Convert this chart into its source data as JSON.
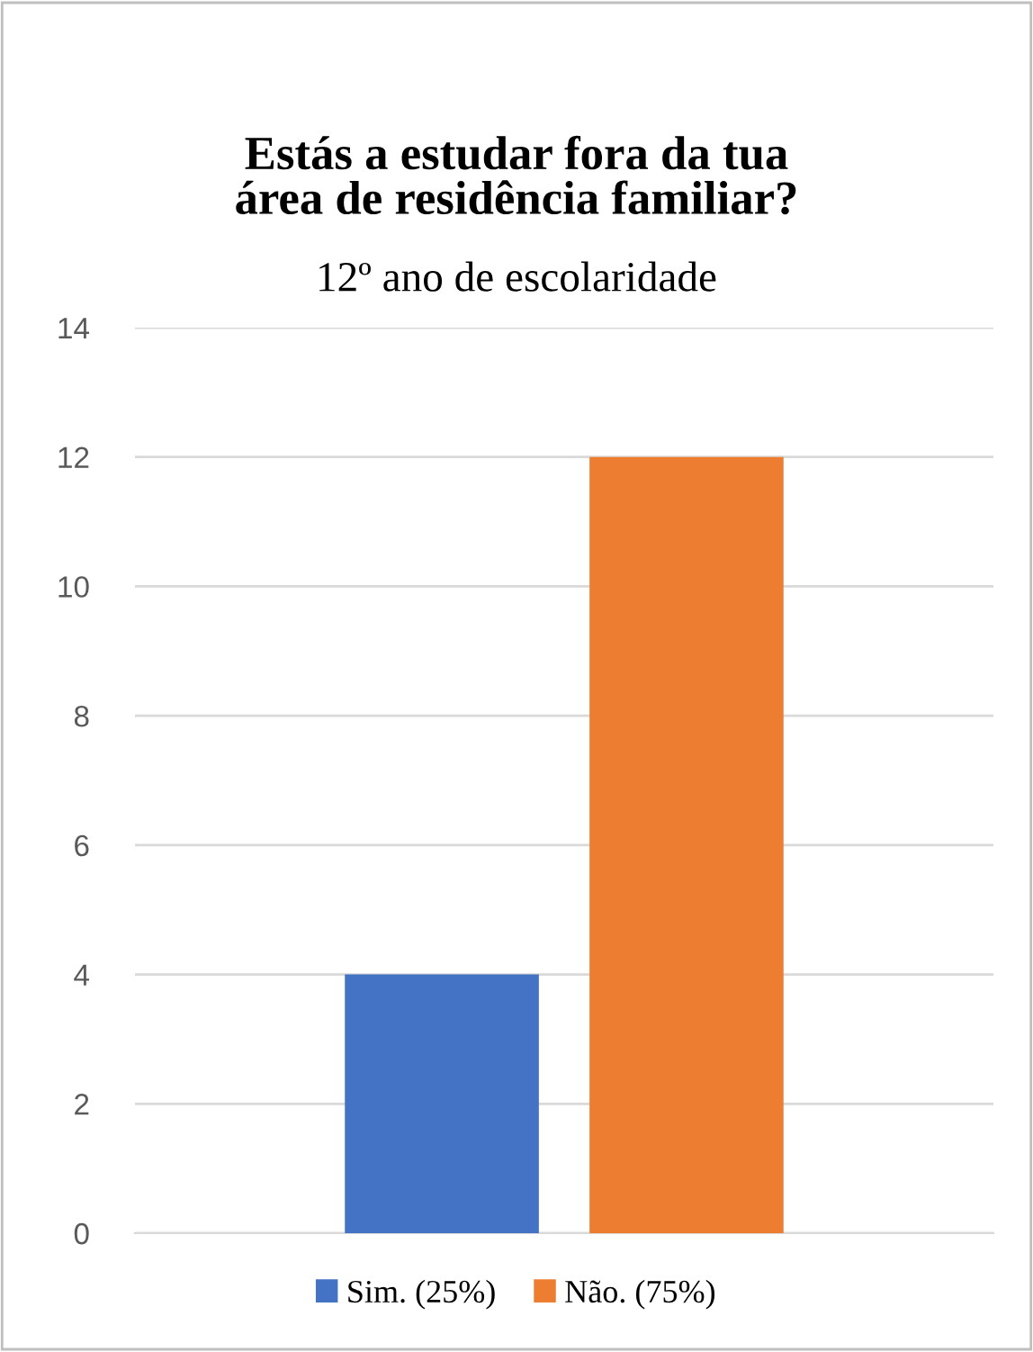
{
  "chart_data": {
    "type": "bar",
    "title": "Estás a estudar fora da tua\nárea de residência familiar?",
    "subtitle": "12º ano de escolaridade",
    "categories": [
      null
    ],
    "series": [
      {
        "name": "Sim. (25%)",
        "color": "#4472c4",
        "values": [
          4
        ]
      },
      {
        "name": "Não. (75%)",
        "color": "#ed7d31",
        "values": [
          12
        ]
      }
    ],
    "ylim": [
      0,
      14
    ],
    "yticks": [
      0,
      2,
      4,
      6,
      8,
      10,
      12,
      14
    ],
    "grid": "y",
    "legend": "bottom"
  }
}
